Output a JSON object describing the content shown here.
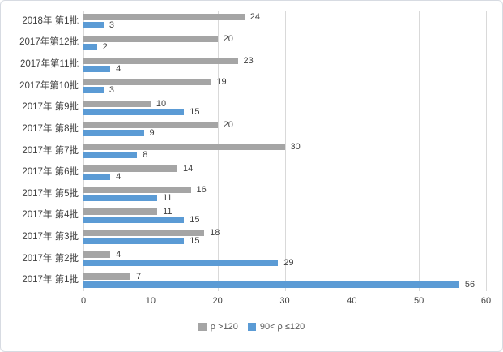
{
  "chart_data": {
    "type": "bar",
    "orientation": "horizontal",
    "title": "",
    "xlabel": "",
    "ylabel": "",
    "categories": [
      "2018年 第1批",
      "2017年第12批",
      "2017年第11批",
      "2017年第10批",
      "2017年 第9批",
      "2017年 第8批",
      "2017年 第7批",
      "2017年 第6批",
      "2017年 第5批",
      "2017年 第4批",
      "2017年 第3批",
      "2017年 第2批",
      "2017年 第1批"
    ],
    "series": [
      {
        "name": "ρ >120",
        "color": "#a5a5a5",
        "values": [
          24,
          20,
          23,
          19,
          10,
          20,
          30,
          14,
          16,
          11,
          18,
          4,
          7
        ]
      },
      {
        "name": "90< ρ ≤120",
        "color": "#5b9bd5",
        "values": [
          3,
          2,
          4,
          3,
          15,
          9,
          8,
          4,
          11,
          15,
          15,
          29,
          56
        ]
      }
    ],
    "xlim": [
      0,
      60
    ],
    "xticks": [
      0,
      10,
      20,
      30,
      40,
      50,
      60
    ],
    "grid": "vertical",
    "gridline_color": "#d9d9d9",
    "legend_position": "bottom",
    "data_labels": true,
    "label_color": "#404040"
  }
}
